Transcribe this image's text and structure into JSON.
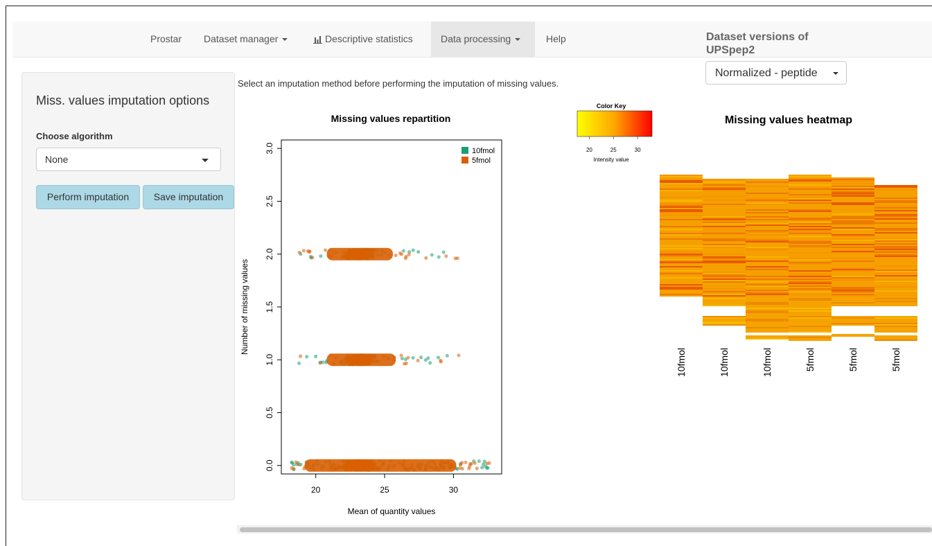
{
  "navbar": {
    "items": [
      {
        "label": "Prostar"
      },
      {
        "label": "Dataset manager"
      },
      {
        "label": "Descriptive statistics",
        "icon": "bar-chart-icon"
      },
      {
        "label": "Data processing",
        "active": true
      },
      {
        "label": "Help"
      }
    ]
  },
  "versions": {
    "title_line1": "Dataset versions of",
    "title_line2": "UPSpep2",
    "selected": "Normalized - peptide"
  },
  "sidebar": {
    "title": "Miss. values imputation options",
    "algo_label": "Choose algorithm",
    "algo_selected": "None",
    "perform_label": "Perform imputation",
    "save_label": "Save imputation"
  },
  "main": {
    "help_text": "Select an imputation method before performing the imputation of missing values."
  },
  "chart_data": [
    {
      "type": "scatter",
      "title": "Missing values repartition",
      "xlabel": "Mean of quantity values",
      "ylabel": "Number of missing values",
      "xticks": [
        20,
        25,
        30
      ],
      "yticks": [
        "0.0",
        "0.5",
        "1.0",
        "1.5",
        "2.0",
        "2.5",
        "3.0"
      ],
      "xlim": [
        17.5,
        33.5
      ],
      "ylim": [
        -0.08,
        3.08
      ],
      "legend_position": "top-right",
      "series": [
        {
          "name": "10fmol",
          "color": "#1b9e77",
          "bands": [
            {
              "y": 2.0,
              "x_range": [
                18.2,
                30.2
              ]
            },
            {
              "y": 1.0,
              "x_range": [
                18.4,
                30.0
              ]
            },
            {
              "y": 0.0,
              "x_range": [
                18.0,
                32.8
              ]
            }
          ]
        },
        {
          "name": "5fmol",
          "color": "#d95f02",
          "bands": [
            {
              "y": 2.0,
              "x_range": [
                18.3,
                30.6
              ]
            },
            {
              "y": 1.0,
              "x_range": [
                18.2,
                31.6
              ]
            },
            {
              "y": 0.0,
              "x_range": [
                18.0,
                32.6
              ]
            }
          ]
        }
      ]
    },
    {
      "type": "heatmap",
      "title": "Missing values heatmap",
      "color_key": {
        "title": "Color Key",
        "label": "Intensity value",
        "ticks": [
          20,
          25,
          30
        ],
        "range": [
          17.5,
          33
        ],
        "colors": [
          "#ffff00",
          "#ffa500",
          "#ff0000"
        ]
      },
      "columns": [
        "10fmol",
        "10fmol",
        "10fmol",
        "5fmol",
        "5fmol",
        "5fmol"
      ]
    }
  ]
}
